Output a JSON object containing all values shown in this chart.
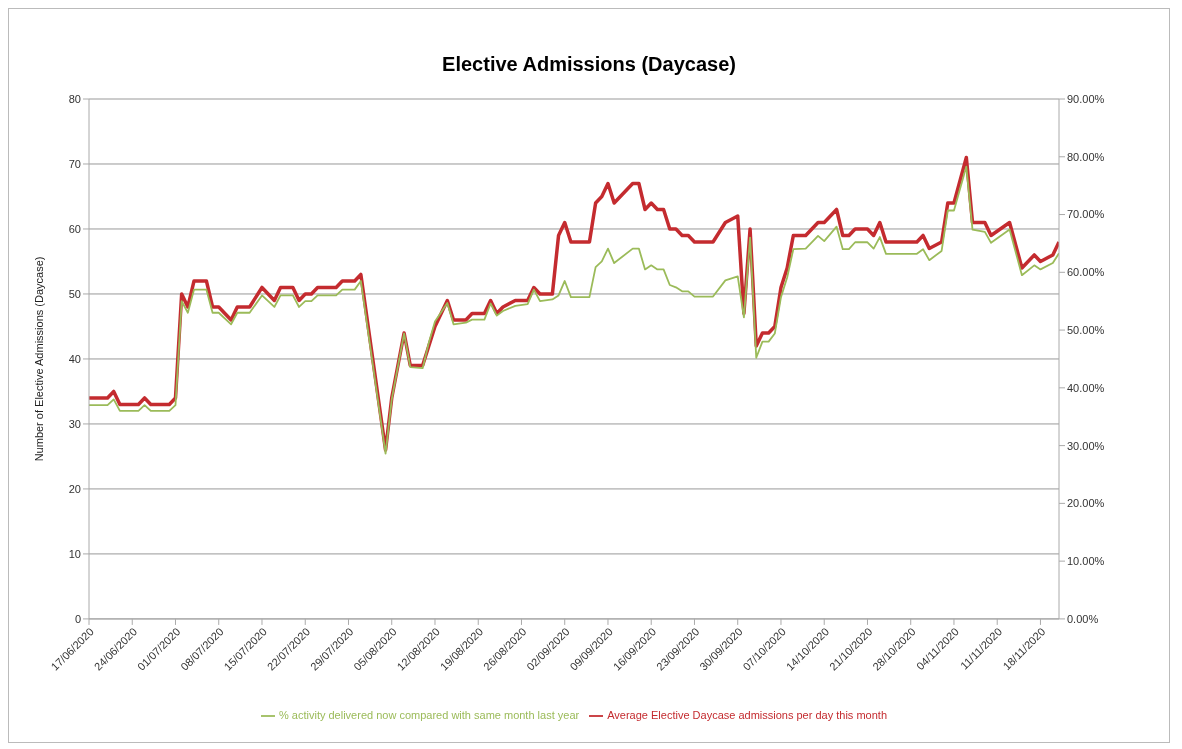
{
  "chart_data": {
    "type": "line",
    "title": "Elective Admissions (Daycase)",
    "ylabel": "Number of Elective Admissions (Daycase)",
    "x": [
      "2020-06-17",
      "2020-06-20",
      "2020-06-21",
      "2020-06-22",
      "2020-06-25",
      "2020-06-26",
      "2020-06-27",
      "2020-06-30",
      "2020-07-01",
      "2020-07-02",
      "2020-07-03",
      "2020-07-04",
      "2020-07-06",
      "2020-07-07",
      "2020-07-08",
      "2020-07-10",
      "2020-07-11",
      "2020-07-13",
      "2020-07-15",
      "2020-07-17",
      "2020-07-18",
      "2020-07-20",
      "2020-07-21",
      "2020-07-22",
      "2020-07-23",
      "2020-07-24",
      "2020-07-27",
      "2020-07-28",
      "2020-07-30",
      "2020-07-31",
      "2020-08-04",
      "2020-08-05",
      "2020-08-07",
      "2020-08-08",
      "2020-08-10",
      "2020-08-11",
      "2020-08-12",
      "2020-08-14",
      "2020-08-15",
      "2020-08-17",
      "2020-08-18",
      "2020-08-20",
      "2020-08-21",
      "2020-08-22",
      "2020-08-23",
      "2020-08-25",
      "2020-08-27",
      "2020-08-28",
      "2020-08-29",
      "2020-08-31",
      "2020-09-01",
      "2020-09-02",
      "2020-09-03",
      "2020-09-06",
      "2020-09-07",
      "2020-09-08",
      "2020-09-09",
      "2020-09-10",
      "2020-09-13",
      "2020-09-14",
      "2020-09-15",
      "2020-09-16",
      "2020-09-17",
      "2020-09-18",
      "2020-09-19",
      "2020-09-20",
      "2020-09-21",
      "2020-09-22",
      "2020-09-23",
      "2020-09-26",
      "2020-09-28",
      "2020-09-30",
      "2020-10-01",
      "2020-10-02",
      "2020-10-03",
      "2020-10-04",
      "2020-10-05",
      "2020-10-06",
      "2020-10-07",
      "2020-10-08",
      "2020-10-09",
      "2020-10-11",
      "2020-10-13",
      "2020-10-14",
      "2020-10-16",
      "2020-10-17",
      "2020-10-18",
      "2020-10-19",
      "2020-10-21",
      "2020-10-22",
      "2020-10-23",
      "2020-10-24",
      "2020-10-29",
      "2020-10-30",
      "2020-10-31",
      "2020-11-02",
      "2020-11-03",
      "2020-11-04",
      "2020-11-06",
      "2020-11-07",
      "2020-11-09",
      "2020-11-10",
      "2020-11-13",
      "2020-11-15",
      "2020-11-17",
      "2020-11-18",
      "2020-11-20",
      "2020-11-21"
    ],
    "series": [
      {
        "name": "Average Elective Daycase admissions per day this month",
        "color": "#c42b2f",
        "values": [
          34,
          34,
          35,
          33,
          33,
          34,
          33,
          33,
          34,
          50,
          48,
          52,
          52,
          48,
          48,
          46,
          48,
          48,
          51,
          49,
          51,
          51,
          49,
          50,
          50,
          51,
          51,
          52,
          52,
          53,
          26,
          34,
          44,
          39,
          39,
          42,
          45,
          49,
          46,
          46,
          47,
          47,
          49,
          47,
          48,
          49,
          49,
          51,
          50,
          50,
          59,
          61,
          58,
          58,
          64,
          65,
          67,
          64,
          67,
          67,
          63,
          64,
          63,
          63,
          60,
          60,
          59,
          59,
          58,
          58,
          61,
          62,
          47,
          60,
          42,
          44,
          44,
          45,
          51,
          54,
          59,
          59,
          61,
          61,
          63,
          59,
          59,
          60,
          60,
          59,
          61,
          58,
          58,
          59,
          57,
          58,
          64,
          64,
          71,
          61,
          61,
          59,
          61,
          54,
          56,
          55,
          56,
          58
        ]
      },
      {
        "name": "% activity delivered now compared with same month last year",
        "color": "#9bbb59",
        "axis": "y2",
        "values": [
          37,
          37,
          38,
          36,
          36,
          37,
          36,
          36,
          37,
          55,
          53,
          57,
          57,
          53,
          53,
          51,
          53,
          53,
          56,
          54,
          56,
          56,
          54,
          55,
          55,
          56,
          56,
          57,
          57,
          58.5,
          28.6,
          38,
          49.4,
          43.6,
          43.4,
          47.8,
          51.5,
          54.7,
          51,
          51.3,
          51.8,
          51.8,
          54.6,
          52.5,
          53.3,
          54.2,
          54.5,
          57,
          55,
          55.3,
          56,
          58.5,
          55.7,
          55.7,
          60.9,
          61.9,
          64.1,
          61.6,
          64.1,
          64.1,
          60.5,
          61.2,
          60.5,
          60.5,
          57.8,
          57.4,
          56.7,
          56.7,
          55.8,
          55.8,
          58.6,
          59.3,
          52.2,
          66,
          45.2,
          48,
          48,
          49.4,
          55.7,
          59.1,
          64,
          64.1,
          66.3,
          65.4,
          67.9,
          64,
          64,
          65.2,
          65.2,
          64.1,
          66.1,
          63.2,
          63.2,
          64,
          62.1,
          63.7,
          70.7,
          70.7,
          78.3,
          67.4,
          67,
          65.1,
          67.4,
          59.5,
          61.2,
          60.5,
          61.6,
          63.3
        ]
      }
    ],
    "xlim": [
      "2020-06-17",
      "2020-11-21"
    ],
    "xticks": [
      {
        "value": "2020-06-17",
        "label": "17/06/2020"
      },
      {
        "value": "2020-06-24",
        "label": "24/06/2020"
      },
      {
        "value": "2020-07-01",
        "label": "01/07/2020"
      },
      {
        "value": "2020-07-08",
        "label": "08/07/2020"
      },
      {
        "value": "2020-07-15",
        "label": "15/07/2020"
      },
      {
        "value": "2020-07-22",
        "label": "22/07/2020"
      },
      {
        "value": "2020-07-29",
        "label": "29/07/2020"
      },
      {
        "value": "2020-08-05",
        "label": "05/08/2020"
      },
      {
        "value": "2020-08-12",
        "label": "12/08/2020"
      },
      {
        "value": "2020-08-19",
        "label": "19/08/2020"
      },
      {
        "value": "2020-08-26",
        "label": "26/08/2020"
      },
      {
        "value": "2020-09-02",
        "label": "02/09/2020"
      },
      {
        "value": "2020-09-09",
        "label": "09/09/2020"
      },
      {
        "value": "2020-09-16",
        "label": "16/09/2020"
      },
      {
        "value": "2020-09-23",
        "label": "23/09/2020"
      },
      {
        "value": "2020-09-30",
        "label": "30/09/2020"
      },
      {
        "value": "2020-10-07",
        "label": "07/10/2020"
      },
      {
        "value": "2020-10-14",
        "label": "14/10/2020"
      },
      {
        "value": "2020-10-21",
        "label": "21/10/2020"
      },
      {
        "value": "2020-10-28",
        "label": "28/10/2020"
      },
      {
        "value": "2020-11-04",
        "label": "04/11/2020"
      },
      {
        "value": "2020-11-11",
        "label": "11/11/2020"
      },
      {
        "value": "2020-11-18",
        "label": "18/11/2020"
      }
    ],
    "ylim": [
      0,
      80
    ],
    "yticks": [
      0,
      10,
      20,
      30,
      40,
      50,
      60,
      70,
      80
    ],
    "y2lim": [
      0,
      90
    ],
    "y2ticks": [
      {
        "value": 0,
        "label": "0.00%"
      },
      {
        "value": 10,
        "label": "10.00%"
      },
      {
        "value": 20,
        "label": "20.00%"
      },
      {
        "value": 30,
        "label": "30.00%"
      },
      {
        "value": 40,
        "label": "40.00%"
      },
      {
        "value": 50,
        "label": "50.00%"
      },
      {
        "value": 60,
        "label": "60.00%"
      },
      {
        "value": 70,
        "label": "70.00%"
      },
      {
        "value": 80,
        "label": "80.00%"
      },
      {
        "value": 90,
        "label": "90.00%"
      }
    ],
    "grid": "y",
    "legend": "bottom",
    "marker": "none",
    "line_style": "solid"
  }
}
